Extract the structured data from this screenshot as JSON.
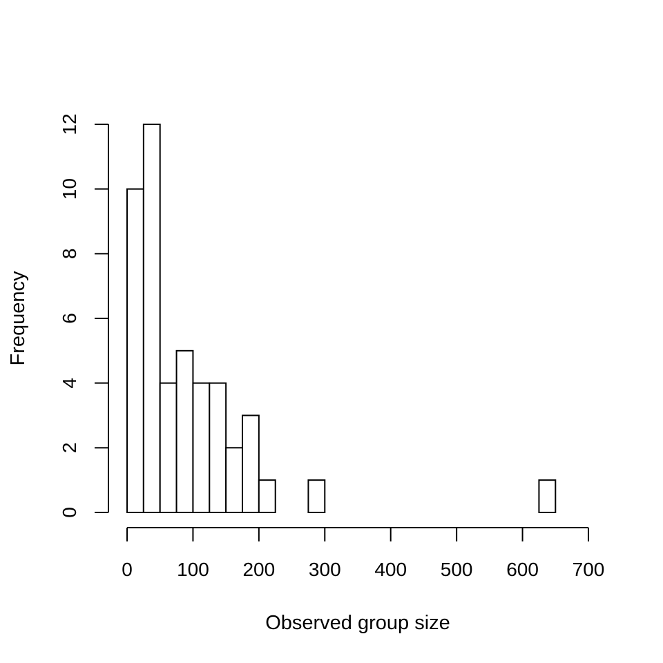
{
  "chart_data": {
    "type": "bar",
    "title": "",
    "xlabel": "Observed group size",
    "ylabel": "Frequency",
    "bin_width": 25,
    "bins": [
      {
        "start": 0,
        "end": 25,
        "count": 10
      },
      {
        "start": 25,
        "end": 50,
        "count": 12
      },
      {
        "start": 50,
        "end": 75,
        "count": 4
      },
      {
        "start": 75,
        "end": 100,
        "count": 5
      },
      {
        "start": 100,
        "end": 125,
        "count": 4
      },
      {
        "start": 125,
        "end": 150,
        "count": 4
      },
      {
        "start": 150,
        "end": 175,
        "count": 2
      },
      {
        "start": 175,
        "end": 200,
        "count": 3
      },
      {
        "start": 200,
        "end": 225,
        "count": 1
      },
      {
        "start": 225,
        "end": 250,
        "count": 0
      },
      {
        "start": 250,
        "end": 275,
        "count": 0
      },
      {
        "start": 275,
        "end": 300,
        "count": 1
      },
      {
        "start": 300,
        "end": 325,
        "count": 0
      },
      {
        "start": 325,
        "end": 350,
        "count": 0
      },
      {
        "start": 350,
        "end": 375,
        "count": 0
      },
      {
        "start": 375,
        "end": 400,
        "count": 0
      },
      {
        "start": 400,
        "end": 425,
        "count": 0
      },
      {
        "start": 425,
        "end": 450,
        "count": 0
      },
      {
        "start": 450,
        "end": 475,
        "count": 0
      },
      {
        "start": 475,
        "end": 500,
        "count": 0
      },
      {
        "start": 500,
        "end": 525,
        "count": 0
      },
      {
        "start": 525,
        "end": 550,
        "count": 0
      },
      {
        "start": 550,
        "end": 575,
        "count": 0
      },
      {
        "start": 575,
        "end": 600,
        "count": 0
      },
      {
        "start": 600,
        "end": 625,
        "count": 0
      },
      {
        "start": 625,
        "end": 650,
        "count": 1
      },
      {
        "start": 650,
        "end": 675,
        "count": 0
      },
      {
        "start": 675,
        "end": 700,
        "count": 0
      }
    ],
    "xlim": [
      0,
      700
    ],
    "ylim": [
      0,
      12
    ],
    "xticks": [
      0,
      100,
      200,
      300,
      400,
      500,
      600,
      700
    ],
    "yticks": [
      0,
      2,
      4,
      6,
      8,
      10,
      12
    ],
    "bar_fill": "#ffffff",
    "bar_stroke": "#000000",
    "grid": false
  }
}
